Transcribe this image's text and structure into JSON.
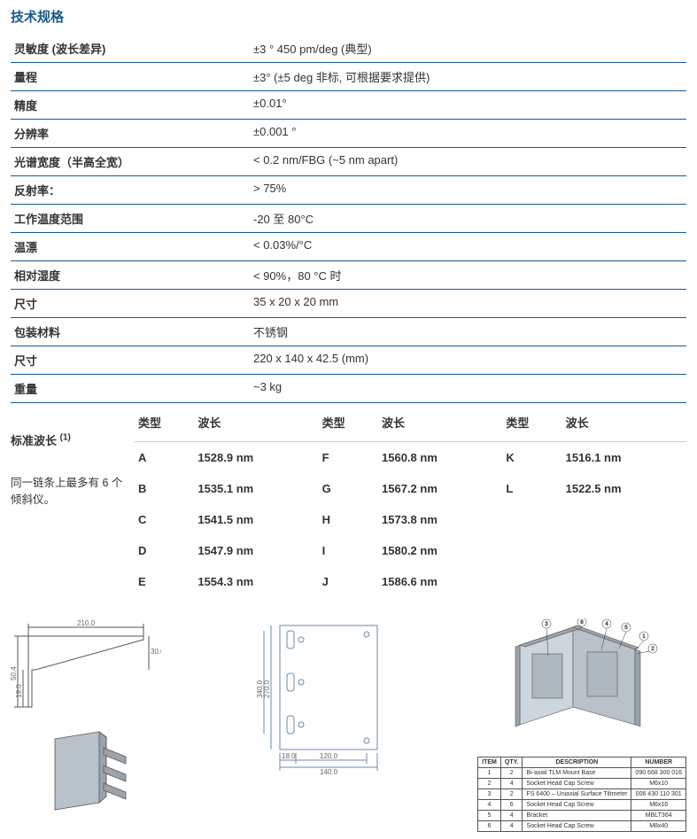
{
  "title": "技术规格",
  "specs": [
    {
      "label": "灵敏度 (波长差异)",
      "value": "±3 ° 450 pm/deg (典型)"
    },
    {
      "label": "量程",
      "value": "±3° (±5 deg 非标, 可根据要求提供)"
    },
    {
      "label": "精度",
      "value": "±0.01°"
    },
    {
      "label": "分辨率",
      "value": "±0.001 °"
    },
    {
      "label": "光谱宽度（半高全宽）",
      "value": "< 0.2 nm/FBG (~5 nm apart)"
    },
    {
      "label": "反射率：",
      "value": "> 75%"
    },
    {
      "label": "工作温度范围",
      "value": "-20 至 80°C"
    },
    {
      "label": "温漂",
      "value": "< 0.03%/°C"
    },
    {
      "label": "相对湿度",
      "value": "< 90%，80 °C 时"
    },
    {
      "label": "尺寸",
      "value": "35 x 20 x 20 mm"
    },
    {
      "label": "包装材料",
      "value": "不锈钢"
    },
    {
      "label": "尺寸",
      "value": "220 x 140 x 42.5 (mm)"
    },
    {
      "label": "重量",
      "value": "~3 kg"
    }
  ],
  "wavelengths": {
    "label": "标准波长",
    "sup": "(1)",
    "note": "同一链条上最多有 6 个倾斜仪。",
    "headers": [
      "类型",
      "波长",
      "类型",
      "波长",
      "类型",
      "波长"
    ],
    "rows": [
      [
        "A",
        "1528.9 nm",
        "F",
        "1560.8 nm",
        "K",
        "1516.1 nm"
      ],
      [
        "B",
        "1535.1 nm",
        "G",
        "1567.2 nm",
        "L",
        "1522.5 nm"
      ],
      [
        "C",
        "1541.5 nm",
        "H",
        "1573.8 nm",
        "",
        ""
      ],
      [
        "D",
        "1547.9 nm",
        "I",
        "1580.2 nm",
        "",
        ""
      ],
      [
        "E",
        "1554.3 nm",
        "J",
        "1586.6 nm",
        "",
        ""
      ]
    ]
  },
  "diagram_dims": {
    "top_view_w": "210.0",
    "side_h1": "50.4",
    "side_h2": "19.0",
    "side_h3": "30.0",
    "plate_h1": "270.0",
    "plate_h2": "340.0",
    "plate_w1": "18.0",
    "plate_w2": "120.0",
    "plate_w3": "140.0"
  },
  "bom": {
    "headers": [
      "ITEM",
      "QTY.",
      "DESCRIPTION",
      "NUMBER"
    ],
    "rows": [
      [
        "1",
        "2",
        "Bi-axial TLM Mount Base",
        "090 668 300 016"
      ],
      [
        "2",
        "4",
        "Socket Head Cap Screw",
        "M6x10"
      ],
      [
        "3",
        "2",
        "FS 6400 – Uniaxial Surface Tiltmeter",
        "006 430 110 301"
      ],
      [
        "4",
        "6",
        "Socket Head Cap Screw",
        "M6x16"
      ],
      [
        "5",
        "4",
        "Bracket",
        "MBLT364"
      ],
      [
        "6",
        "4",
        "Socket Head Cap Screw",
        "M8x40"
      ]
    ]
  },
  "colors": {
    "accent": "#1a5a8a",
    "line": "#555555",
    "plate_stroke": "#6a8aa8",
    "iso_face1": "#b8c2c8",
    "iso_face2": "#9aa4aa",
    "iso_face3": "#cdd6dc"
  }
}
